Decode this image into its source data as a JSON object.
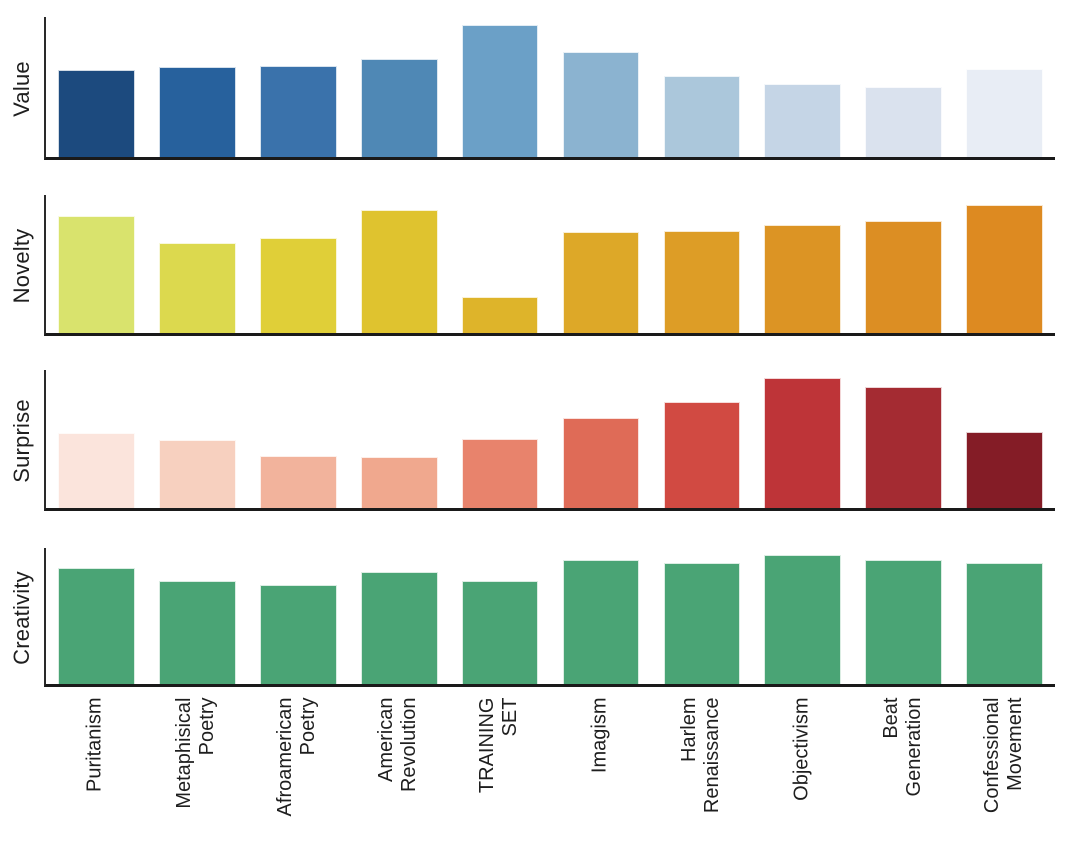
{
  "figure": {
    "background": "#ffffff",
    "text_color": "#1f1f1f",
    "axis_color": "#1a1a1a"
  },
  "categories": [
    "Puritanism",
    "Metaphisical Poetry",
    "Afroamerican Poetry",
    "American Revolution",
    "TRAINING SET",
    "Imagism",
    "Harlem Renaissance",
    "Objectivism",
    "Beat Generation",
    "Confessional Movement"
  ],
  "chart_data": [
    {
      "type": "bar",
      "ylabel": "Value",
      "categories": [
        "Puritanism",
        "Metaphisical Poetry",
        "Afroamerican Poetry",
        "American Revolution",
        "TRAINING SET",
        "Imagism",
        "Harlem Renaissance",
        "Objectivism",
        "Beat Generation",
        "Confessional Movement"
      ],
      "values": [
        0.62,
        0.64,
        0.65,
        0.7,
        0.94,
        0.75,
        0.58,
        0.52,
        0.5,
        0.63
      ],
      "colors": [
        "#1c4a7e",
        "#27619d",
        "#3a72ab",
        "#4f88b5",
        "#6ba0c7",
        "#8bb3d0",
        "#abc7db",
        "#c5d5e6",
        "#dae2ee",
        "#e8edf5"
      ],
      "palette": "blues dark to light",
      "ylim": [
        0,
        1
      ],
      "grid": false,
      "xticklabels_shown": false
    },
    {
      "type": "bar",
      "ylabel": "Novelty",
      "categories": [
        "Puritanism",
        "Metaphisical Poetry",
        "Afroamerican Poetry",
        "American Revolution",
        "TRAINING SET",
        "Imagism",
        "Harlem Renaissance",
        "Objectivism",
        "Beat Generation",
        "Confessional Movement"
      ],
      "values": [
        0.85,
        0.65,
        0.69,
        0.89,
        0.26,
        0.73,
        0.74,
        0.78,
        0.81,
        0.93
      ],
      "colors": [
        "#d9e36d",
        "#dcd94e",
        "#e0cf38",
        "#dfc32f",
        "#deb42a",
        "#dda828",
        "#dd9d26",
        "#dc9424",
        "#dc8e23",
        "#dd8a21"
      ],
      "palette": "yellow-green to orange",
      "ylim": [
        0,
        1
      ],
      "grid": false,
      "xticklabels_shown": false
    },
    {
      "type": "bar",
      "ylabel": "Surprise",
      "categories": [
        "Puritanism",
        "Metaphisical Poetry",
        "Afroamerican Poetry",
        "American Revolution",
        "TRAINING SET",
        "Imagism",
        "Harlem Renaissance",
        "Objectivism",
        "Beat Generation",
        "Confessional Movement"
      ],
      "values": [
        0.54,
        0.49,
        0.38,
        0.37,
        0.5,
        0.65,
        0.77,
        0.94,
        0.88,
        0.55
      ],
      "colors": [
        "#fbe4dc",
        "#f7d0bf",
        "#f2b39c",
        "#f0a88e",
        "#e8836c",
        "#df6b57",
        "#d14a42",
        "#be3438",
        "#a42b32",
        "#841c26"
      ],
      "palette": "light pink to dark red",
      "ylim": [
        0,
        1
      ],
      "grid": false,
      "xticklabels_shown": false
    },
    {
      "type": "bar",
      "ylabel": "Creativity",
      "categories": [
        "Puritanism",
        "Metaphisical Poetry",
        "Afroamerican Poetry",
        "American Revolution",
        "TRAINING SET",
        "Imagism",
        "Harlem Renaissance",
        "Objectivism",
        "Beat Generation",
        "Confessional Movement"
      ],
      "values": [
        0.85,
        0.76,
        0.73,
        0.82,
        0.76,
        0.91,
        0.89,
        0.95,
        0.91,
        0.89
      ],
      "colors": [
        "#4aa475",
        "#4aa475",
        "#4aa475",
        "#4aa475",
        "#4aa475",
        "#4aa475",
        "#4aa475",
        "#4aa475",
        "#4aa475",
        "#4aa475"
      ],
      "palette": "flat green",
      "ylim": [
        0,
        1
      ],
      "grid": false,
      "xticklabels_shown": true
    }
  ]
}
